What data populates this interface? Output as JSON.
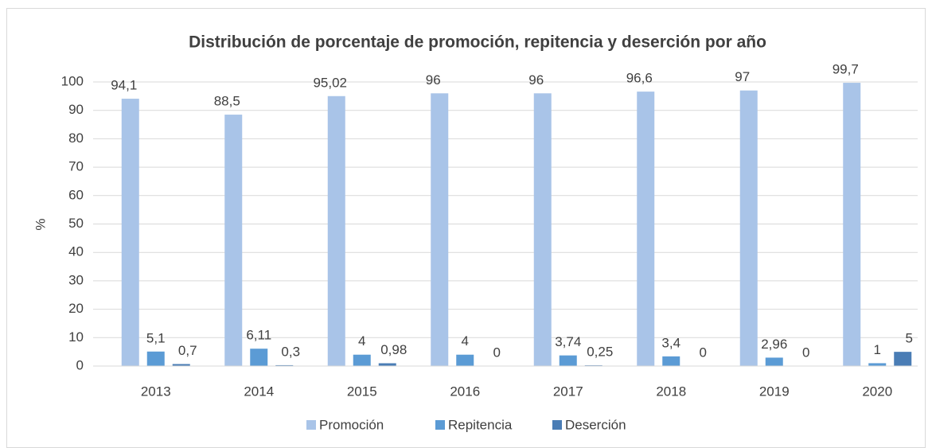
{
  "chart_data": {
    "type": "bar",
    "title": "Distribución de porcentaje de promoción, repitencia y deserción por año",
    "y_label": "%",
    "categories": [
      "2013",
      "2014",
      "2015",
      "2016",
      "2017",
      "2018",
      "2019",
      "2020"
    ],
    "series": [
      {
        "name": "Promoción",
        "color": "#a9c4e8",
        "values": [
          94.1,
          88.5,
          95.02,
          96,
          96,
          96.6,
          97,
          99.7
        ],
        "value_labels": [
          "94,1",
          "88,5",
          "95,02",
          "96",
          "96",
          "96,6",
          "97",
          "99,7"
        ]
      },
      {
        "name": "Repitencia",
        "color": "#5b9bd5",
        "values": [
          5.1,
          6.11,
          4,
          4,
          3.74,
          3.4,
          2.96,
          1
        ],
        "value_labels": [
          "5,1",
          "6,11",
          "4",
          "4",
          "3,74",
          "3,4",
          "2,96",
          "1"
        ]
      },
      {
        "name": "Deserción",
        "color": "#4a7db5",
        "values": [
          0.7,
          0.3,
          0.98,
          0,
          0.25,
          0,
          0,
          5
        ],
        "value_labels": [
          "0,7",
          "0,3",
          "0,98",
          "0",
          "0,25",
          "0",
          "0",
          "5"
        ]
      }
    ],
    "ylim": [
      0,
      100
    ],
    "yticks": [
      0,
      10,
      20,
      30,
      40,
      50,
      60,
      70,
      80,
      90,
      100
    ],
    "grid": true,
    "legend": "bottom"
  }
}
